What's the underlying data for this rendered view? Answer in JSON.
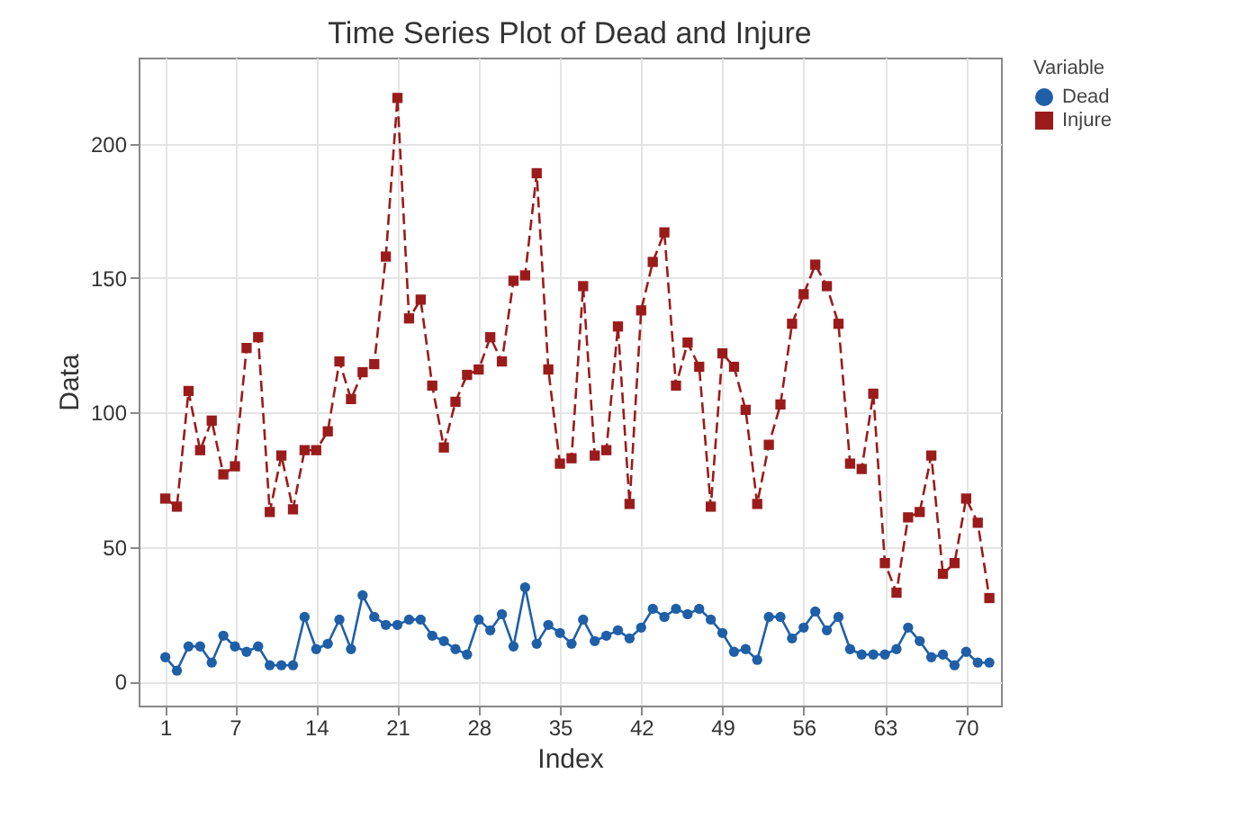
{
  "chart_data": {
    "type": "line",
    "title": "Time Series Plot of Dead and Injure",
    "xlabel": "Index",
    "ylabel": "Data",
    "legend_title": "Variable",
    "legend": "right",
    "grid": true,
    "x": [
      1,
      2,
      3,
      4,
      5,
      6,
      7,
      8,
      9,
      10,
      11,
      12,
      13,
      14,
      15,
      16,
      17,
      18,
      19,
      20,
      21,
      22,
      23,
      24,
      25,
      26,
      27,
      28,
      29,
      30,
      31,
      32,
      33,
      34,
      35,
      36,
      37,
      38,
      39,
      40,
      41,
      42,
      43,
      44,
      45,
      46,
      47,
      48,
      49,
      50,
      51,
      52,
      53,
      54,
      55,
      56,
      57,
      58,
      59,
      60,
      61,
      62,
      63,
      64,
      65,
      66,
      67,
      68,
      69,
      70,
      71,
      72
    ],
    "xlim": [
      -1.3,
      73
    ],
    "xticks": [
      1,
      7,
      14,
      21,
      28,
      35,
      42,
      49,
      56,
      63,
      70
    ],
    "ylim": [
      -9,
      232
    ],
    "yticks": [
      0,
      50,
      100,
      150,
      200
    ],
    "series": [
      {
        "name": "Dead",
        "color": "#1f5fa8",
        "marker": "circle",
        "line_style": "solid",
        "values": [
          9,
          4,
          13,
          13,
          7,
          17,
          13,
          11,
          13,
          6,
          6,
          6,
          24,
          12,
          14,
          23,
          12,
          32,
          24,
          21,
          21,
          23,
          23,
          17,
          15,
          12,
          10,
          23,
          19,
          25,
          13,
          35,
          14,
          21,
          18,
          14,
          23,
          15,
          17,
          19,
          16,
          20,
          27,
          24,
          27,
          25,
          27,
          23,
          18,
          11,
          12,
          8,
          24,
          24,
          16,
          20,
          26,
          19,
          24,
          12,
          10,
          10,
          10,
          12,
          20,
          15,
          9,
          10,
          6,
          11,
          7,
          7
        ]
      },
      {
        "name": "Injure",
        "color": "#9b1b1b",
        "marker": "square",
        "line_style": "dashed",
        "values": [
          68,
          65,
          108,
          86,
          97,
          77,
          80,
          124,
          128,
          63,
          84,
          64,
          86,
          86,
          93,
          119,
          105,
          115,
          118,
          158,
          217,
          135,
          142,
          110,
          87,
          104,
          114,
          116,
          128,
          119,
          149,
          151,
          189,
          116,
          81,
          83,
          147,
          84,
          86,
          132,
          66,
          138,
          156,
          167,
          110,
          126,
          117,
          65,
          122,
          117,
          101,
          66,
          88,
          103,
          133,
          144,
          155,
          147,
          133,
          81,
          79,
          107,
          44,
          33,
          61,
          63,
          84,
          40,
          44,
          68,
          59,
          31
        ]
      }
    ]
  }
}
